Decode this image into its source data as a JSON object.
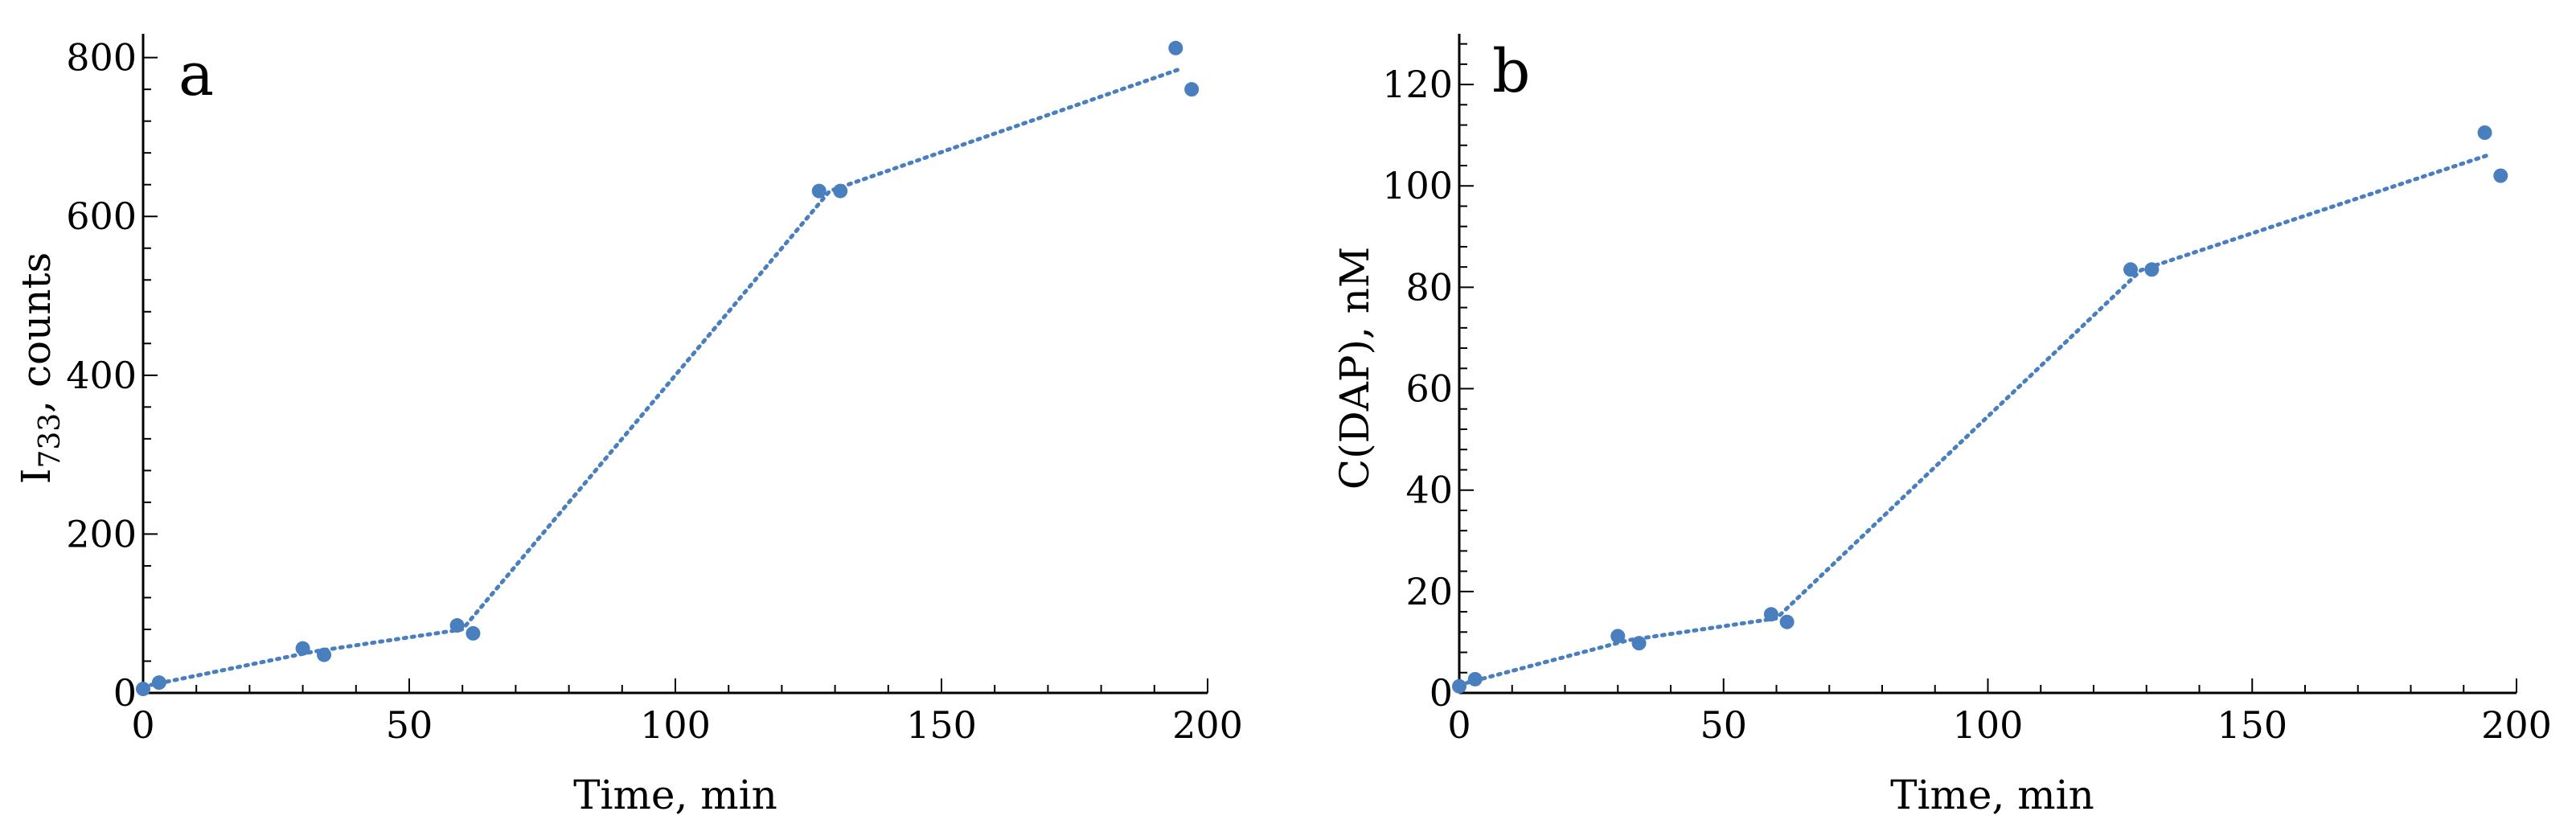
{
  "chart_data": [
    {
      "type": "scatter",
      "panel_label": "a",
      "xlabel": "Time, min",
      "ylabel_main": "I",
      "ylabel_sub": "733",
      "ylabel_rest": ", counts",
      "xlim": [
        0,
        200
      ],
      "ylim": [
        0,
        830
      ],
      "xticks": [
        0,
        50,
        100,
        150,
        200
      ],
      "yticks": [
        0,
        200,
        400,
        600,
        800
      ],
      "grid": false,
      "color": "#4a7fbf",
      "points": [
        {
          "x": 0,
          "y": 5
        },
        {
          "x": 3,
          "y": 13
        },
        {
          "x": 30,
          "y": 56
        },
        {
          "x": 34,
          "y": 48
        },
        {
          "x": 59,
          "y": 85
        },
        {
          "x": 62,
          "y": 75
        },
        {
          "x": 127,
          "y": 632
        },
        {
          "x": 131,
          "y": 632
        },
        {
          "x": 194,
          "y": 812
        },
        {
          "x": 197,
          "y": 760
        }
      ],
      "fit_line": [
        {
          "x": 0,
          "y": 8
        },
        {
          "x": 32,
          "y": 52
        },
        {
          "x": 60,
          "y": 80
        },
        {
          "x": 129,
          "y": 632
        },
        {
          "x": 195,
          "y": 786
        }
      ]
    },
    {
      "type": "scatter",
      "panel_label": "b",
      "xlabel": "Time, min",
      "ylabel": "C(DAP), nM",
      "xlim": [
        0,
        200
      ],
      "ylim": [
        0,
        130
      ],
      "xticks": [
        0,
        50,
        100,
        150,
        200
      ],
      "yticks": [
        0,
        20,
        40,
        60,
        80,
        100,
        120
      ],
      "grid": false,
      "color": "#4a7fbf",
      "points": [
        {
          "x": 0,
          "y": 1.3
        },
        {
          "x": 3,
          "y": 2.7
        },
        {
          "x": 30,
          "y": 11.2
        },
        {
          "x": 34,
          "y": 9.8
        },
        {
          "x": 59,
          "y": 15.5
        },
        {
          "x": 62,
          "y": 14
        },
        {
          "x": 127,
          "y": 83.5
        },
        {
          "x": 131,
          "y": 83.5
        },
        {
          "x": 194,
          "y": 110.5
        },
        {
          "x": 197,
          "y": 102
        }
      ],
      "fit_line": [
        {
          "x": 0,
          "y": 1.6
        },
        {
          "x": 32,
          "y": 10.4
        },
        {
          "x": 60,
          "y": 14.7
        },
        {
          "x": 129,
          "y": 83.4
        },
        {
          "x": 195,
          "y": 106.2
        }
      ]
    }
  ]
}
